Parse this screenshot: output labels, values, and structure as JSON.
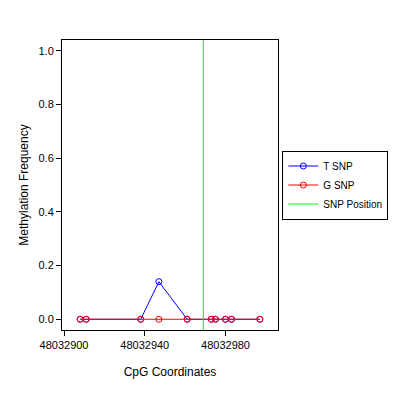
{
  "chart_data": {
    "type": "line",
    "x_label": "CpG Coordinates",
    "y_label": "Methylation Frequency",
    "x": [
      48032908,
      48032911,
      48032938,
      48032947,
      48032961,
      48032973,
      48032975,
      48032980,
      48032983,
      48032997
    ],
    "series": [
      {
        "name": "T SNP",
        "color": "#0000ff",
        "marker": "open_circle",
        "line_style": "solid",
        "values": [
          0,
          0,
          0,
          0.14,
          0,
          0,
          0,
          0,
          0,
          0
        ]
      },
      {
        "name": "G SNP",
        "color": "#ff0000",
        "marker": "open_circle",
        "line_style": "solid",
        "values": [
          0,
          0,
          0,
          0,
          0,
          0,
          0,
          0,
          0,
          0
        ]
      }
    ],
    "snp_position": {
      "name": "SNP Position",
      "color": "#00ff00",
      "x": 48032969
    },
    "xlim": [
      48032899,
      48033006
    ],
    "xticks": [
      48032900,
      48032940,
      48032980
    ],
    "ylim": [
      -0.04,
      1.04
    ],
    "yticks": [
      {
        "value": 0,
        "label": "0.0"
      },
      0.2,
      0.4,
      0.6,
      0.8,
      {
        "value": 1,
        "label": "1.0"
      }
    ],
    "grid": false,
    "legend": "right"
  }
}
